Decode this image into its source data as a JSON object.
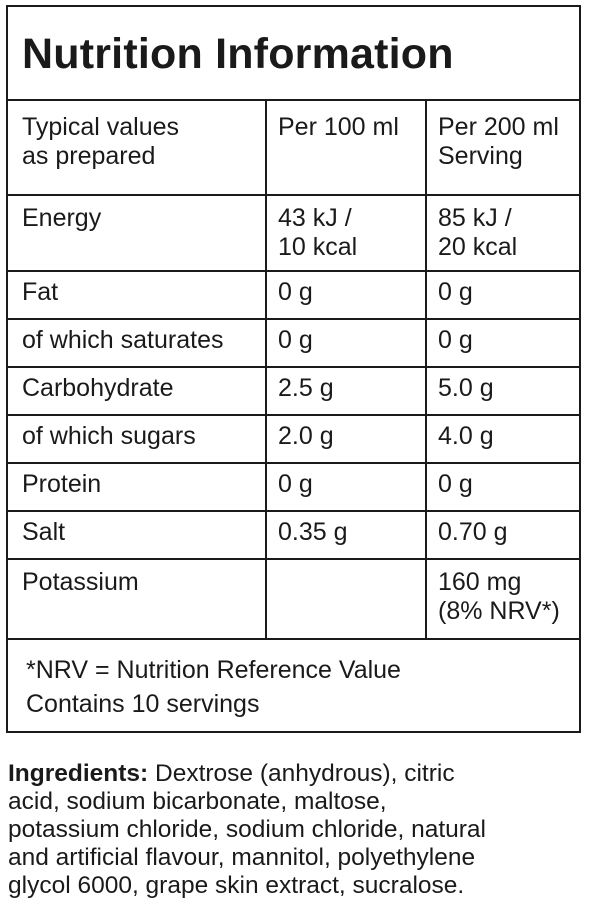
{
  "panel": {
    "title": "Nutrition Information",
    "headers": {
      "col1": [
        "Typical values",
        "as prepared"
      ],
      "col2": [
        "Per 100 ml"
      ],
      "col3": [
        "Per 200 ml",
        "Serving"
      ]
    },
    "rows": [
      {
        "label": "Energy",
        "per100": [
          "43 kJ /",
          "10 kcal"
        ],
        "per200": [
          "85 kJ /",
          "20 kcal"
        ]
      },
      {
        "label": "Fat",
        "per100": "0 g",
        "per200": "0 g"
      },
      {
        "label": "of which saturates",
        "per100": "0 g",
        "per200": "0 g"
      },
      {
        "label": "Carbohydrate",
        "per100": "2.5 g",
        "per200": "5.0 g"
      },
      {
        "label": "of which sugars",
        "per100": "2.0 g",
        "per200": "4.0 g"
      },
      {
        "label": "Protein",
        "per100": "0 g",
        "per200": "0 g"
      },
      {
        "label": "Salt",
        "per100": "0.35 g",
        "per200": "0.70 g"
      },
      {
        "label": "Potassium",
        "per100": "",
        "per200": [
          "160 mg",
          "(8% NRV*)"
        ]
      }
    ],
    "footnote": {
      "line1": "*NRV = Nutrition Reference Value",
      "line2": "Contains 10 servings"
    }
  },
  "ingredients": {
    "label": "Ingredients:",
    "text": " Dextrose (anhydrous), citric\nacid, sodium bicarbonate, maltose,\npotassium chloride, sodium chloride, natural\nand artificial flavour, mannitol, polyethylene\nglycol 6000, grape skin extract, sucralose."
  }
}
